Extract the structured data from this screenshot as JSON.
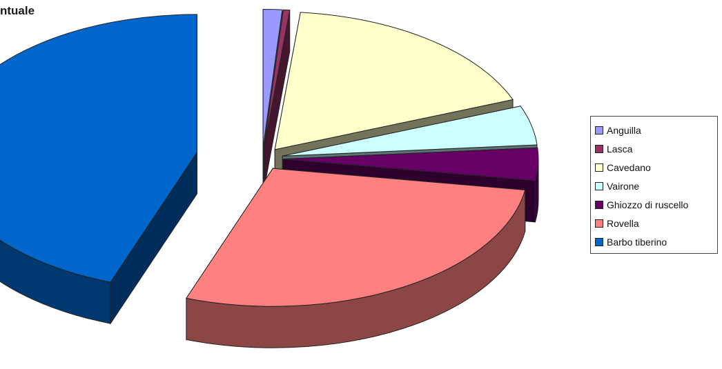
{
  "title": "ntuale",
  "chart_data": {
    "type": "pie",
    "categories": [
      "Anguilla",
      "Lasca",
      "Cavedano",
      "Vairone",
      "Ghiozzo di ruscello",
      "Rovella",
      "Barbo tiberino"
    ],
    "values": [
      1.2,
      0.4,
      17.5,
      4.6,
      3.8,
      28.0,
      44.5
    ],
    "colors": [
      "#9999ff",
      "#993366",
      "#ffffcc",
      "#ccffff",
      "#660066",
      "#ff8080",
      "#0066cc"
    ],
    "title": "ntuale",
    "legend_position": "right",
    "three_d": true,
    "exploded": true
  },
  "legend": {
    "items": [
      {
        "label": "Anguilla",
        "color": "#9999ff"
      },
      {
        "label": "Lasca",
        "color": "#993366"
      },
      {
        "label": "Cavedano",
        "color": "#ffffcc"
      },
      {
        "label": "Vairone",
        "color": "#ccffff"
      },
      {
        "label": "Ghiozzo di ruscello",
        "color": "#660066"
      },
      {
        "label": "Rovella",
        "color": "#ff8080"
      },
      {
        "label": "Barbo tiberino",
        "color": "#0066cc"
      }
    ]
  }
}
